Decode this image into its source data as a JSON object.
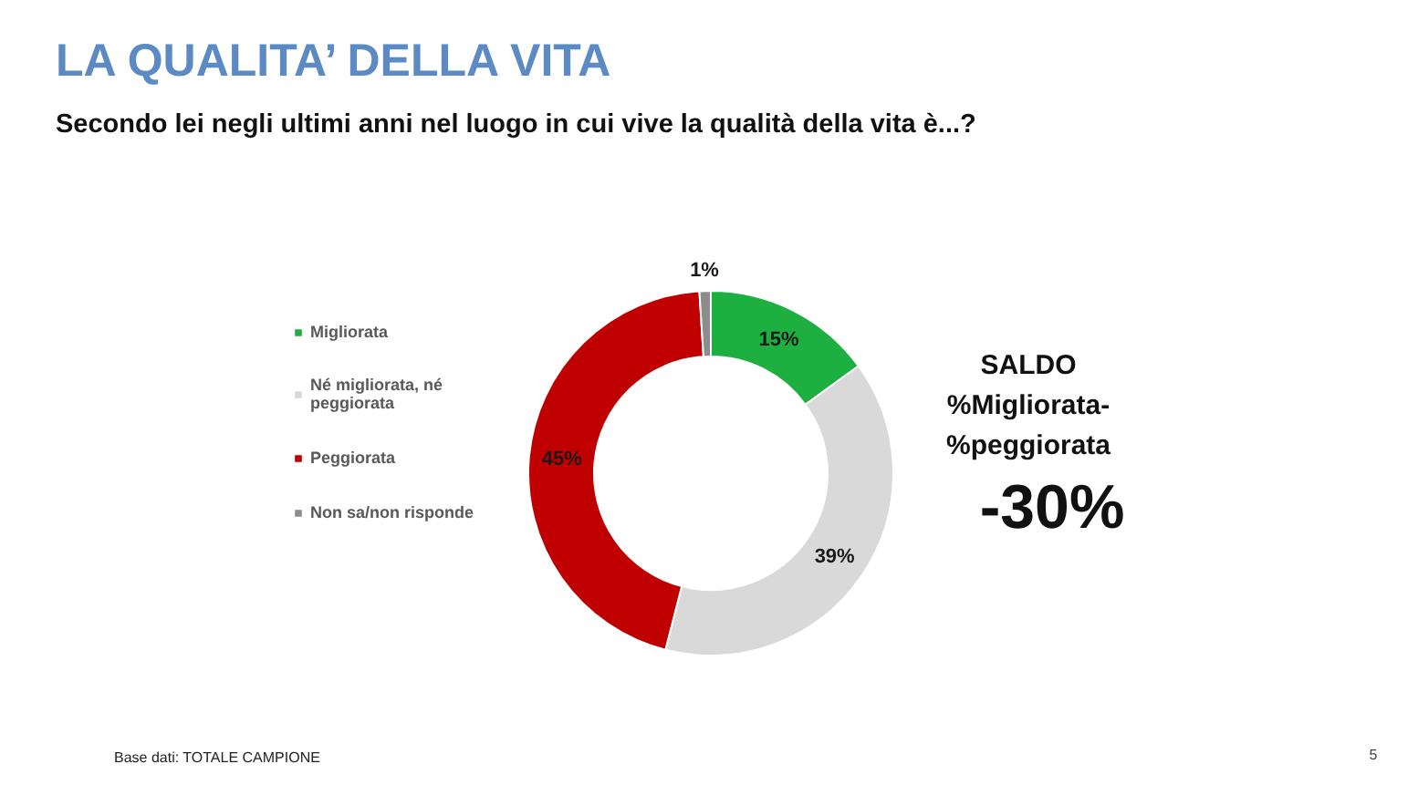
{
  "chart_data": {
    "type": "donut",
    "title": "LA QUALITA’ DELLA VITA",
    "subtitle": "Secondo lei negli ultimi anni nel luogo in cui vive la qualità della vita è...?",
    "categories": [
      "Migliorata",
      "Né migliorata, né peggiorata",
      "Peggiorata",
      "Non sa/non risponde"
    ],
    "values": [
      15,
      39,
      45,
      1
    ],
    "colors": [
      "#1db040",
      "#d9d9d9",
      "#c00000",
      "#8c8c8c"
    ],
    "value_labels": [
      "15%",
      "39%",
      "45%",
      "1%"
    ],
    "legend": "left",
    "annotations": [
      "SALDO %Migliorata- %peggiorata",
      "-30%",
      "Base dati: TOTALE CAMPIONE",
      "5"
    ]
  }
}
